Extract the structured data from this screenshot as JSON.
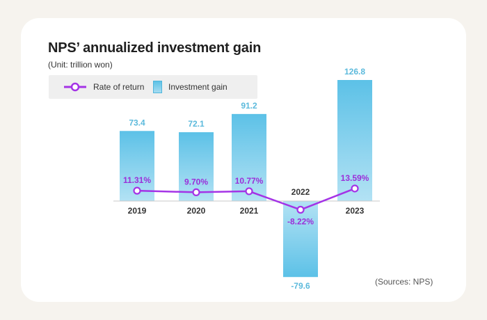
{
  "header": {
    "title": "NPS’ annualized investment gain",
    "unit": "(Unit: trillion won)"
  },
  "legend": {
    "line_label": "Rate of return",
    "bar_label": "Investment gain"
  },
  "footer": {
    "source": "(Sources: NPS)"
  },
  "colors": {
    "bar": "#7fcff0",
    "line": "#a433e6",
    "axis": "#c8c8c8"
  },
  "chart_data": {
    "type": "bar+line",
    "title": "NPS’ annualized investment gain",
    "subtitle": "(Unit: trillion won)",
    "categories": [
      "2019",
      "2020",
      "2021",
      "2022",
      "2023"
    ],
    "series": [
      {
        "name": "Investment gain",
        "type": "bar",
        "values": [
          73.4,
          72.1,
          91.2,
          -79.6,
          126.8
        ],
        "labels": [
          "73.4",
          "72.1",
          "91.2",
          "-79.6",
          "126.8"
        ]
      },
      {
        "name": "Rate of return",
        "type": "line",
        "values": [
          11.31,
          9.7,
          10.77,
          -8.22,
          13.59
        ],
        "labels": [
          "11.31%",
          "9.70%",
          "10.77%",
          "-8.22%",
          "13.59%"
        ]
      }
    ],
    "bar_ylim": [
      -79.6,
      126.8
    ],
    "line_ylim": [
      -25,
      40
    ],
    "legend_position": "top-left",
    "grid": false
  }
}
